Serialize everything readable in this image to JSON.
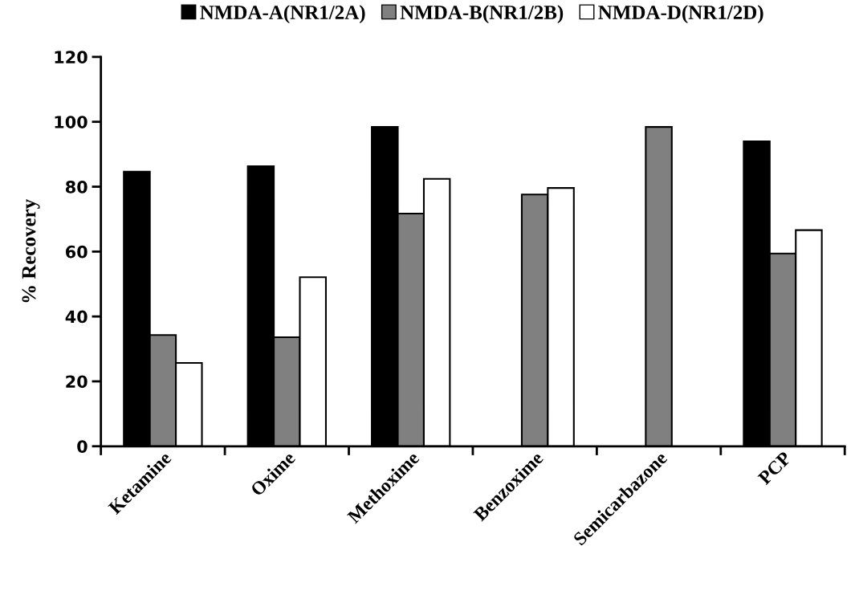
{
  "chart_data": {
    "type": "bar",
    "ylabel": "% Recovery",
    "categories": [
      "Ketamine",
      "Oxime",
      "Methoxime",
      "Benzoxime",
      "Semicarbazone",
      "PCP"
    ],
    "series": [
      {
        "name": "NMDA-A(NR1/2A)",
        "color": "#000000",
        "values": [
          84.6,
          86.3,
          98.4,
          null,
          null,
          94.0
        ]
      },
      {
        "name": "NMDA-B(NR1/2B)",
        "color": "#808080",
        "values": [
          34.3,
          33.6,
          71.7,
          77.6,
          98.4,
          59.4
        ]
      },
      {
        "name": "NMDA-D(NR1/2D)",
        "color": "#ffffff",
        "values": [
          25.7,
          52.1,
          82.4,
          79.6,
          null,
          66.6
        ]
      }
    ],
    "ylim": [
      0,
      120
    ],
    "yticks": [
      0,
      20,
      40,
      60,
      80,
      100,
      120
    ],
    "grid": false,
    "legend": "top"
  }
}
